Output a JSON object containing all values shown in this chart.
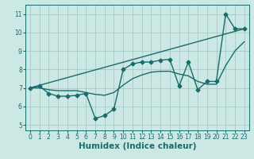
{
  "xlabel": "Humidex (Indice chaleur)",
  "background_color": "#cce8e4",
  "grid_color": "#aacfcb",
  "line_color": "#1a6b6b",
  "x_ticks": [
    0,
    1,
    2,
    3,
    4,
    5,
    6,
    7,
    8,
    9,
    10,
    11,
    12,
    13,
    14,
    15,
    16,
    17,
    18,
    19,
    20,
    21,
    22,
    23
  ],
  "y_ticks": [
    5,
    6,
    7,
    8,
    9,
    10,
    11
  ],
  "ylim": [
    4.7,
    11.5
  ],
  "xlim": [
    -0.5,
    23.5
  ],
  "main_x": [
    0,
    1,
    2,
    3,
    4,
    5,
    6,
    7,
    8,
    9,
    10,
    11,
    12,
    13,
    14,
    15,
    16,
    17,
    18,
    19,
    20,
    21,
    22,
    23
  ],
  "main_y": [
    7.0,
    7.1,
    6.7,
    6.55,
    6.55,
    6.6,
    6.7,
    5.35,
    5.5,
    5.85,
    8.0,
    8.3,
    8.4,
    8.4,
    8.5,
    8.55,
    7.1,
    8.4,
    6.9,
    7.35,
    7.35,
    11.0,
    10.2,
    10.2
  ],
  "trend_x": [
    0,
    23
  ],
  "trend_y": [
    7.0,
    10.2
  ],
  "smooth_y": [
    7.0,
    7.0,
    6.9,
    6.85,
    6.85,
    6.85,
    6.75,
    6.65,
    6.6,
    6.75,
    7.15,
    7.5,
    7.7,
    7.85,
    7.9,
    7.9,
    7.75,
    7.65,
    7.35,
    7.2,
    7.2,
    8.2,
    9.0,
    9.5
  ],
  "marker": "D",
  "marker_size": 2.5,
  "line_width": 1.0,
  "tick_fontsize": 5.5,
  "xlabel_fontsize": 7.5
}
